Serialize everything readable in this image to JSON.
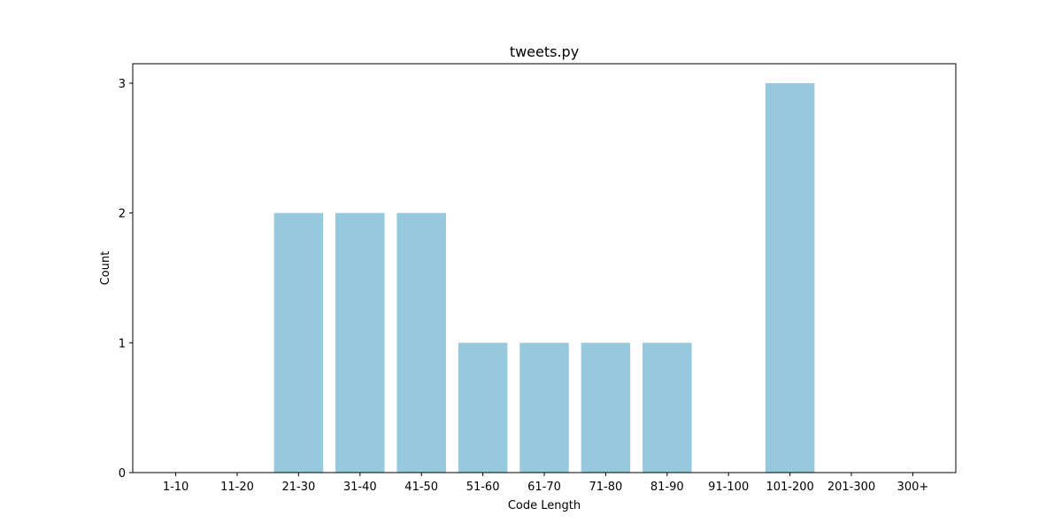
{
  "chart_data": {
    "type": "bar",
    "title": "tweets.py",
    "xlabel": "Code Length",
    "ylabel": "Count",
    "categories": [
      "1-10",
      "11-20",
      "21-30",
      "31-40",
      "41-50",
      "51-60",
      "61-70",
      "71-80",
      "81-90",
      "91-100",
      "101-200",
      "201-300",
      "300+"
    ],
    "values": [
      0,
      0,
      2,
      2,
      2,
      1,
      1,
      1,
      1,
      0,
      3,
      0,
      0
    ],
    "yticks": [
      0,
      1,
      2,
      3
    ],
    "ylim": [
      0,
      3.15
    ],
    "grid": false,
    "bar_color": "#96c9dd"
  }
}
